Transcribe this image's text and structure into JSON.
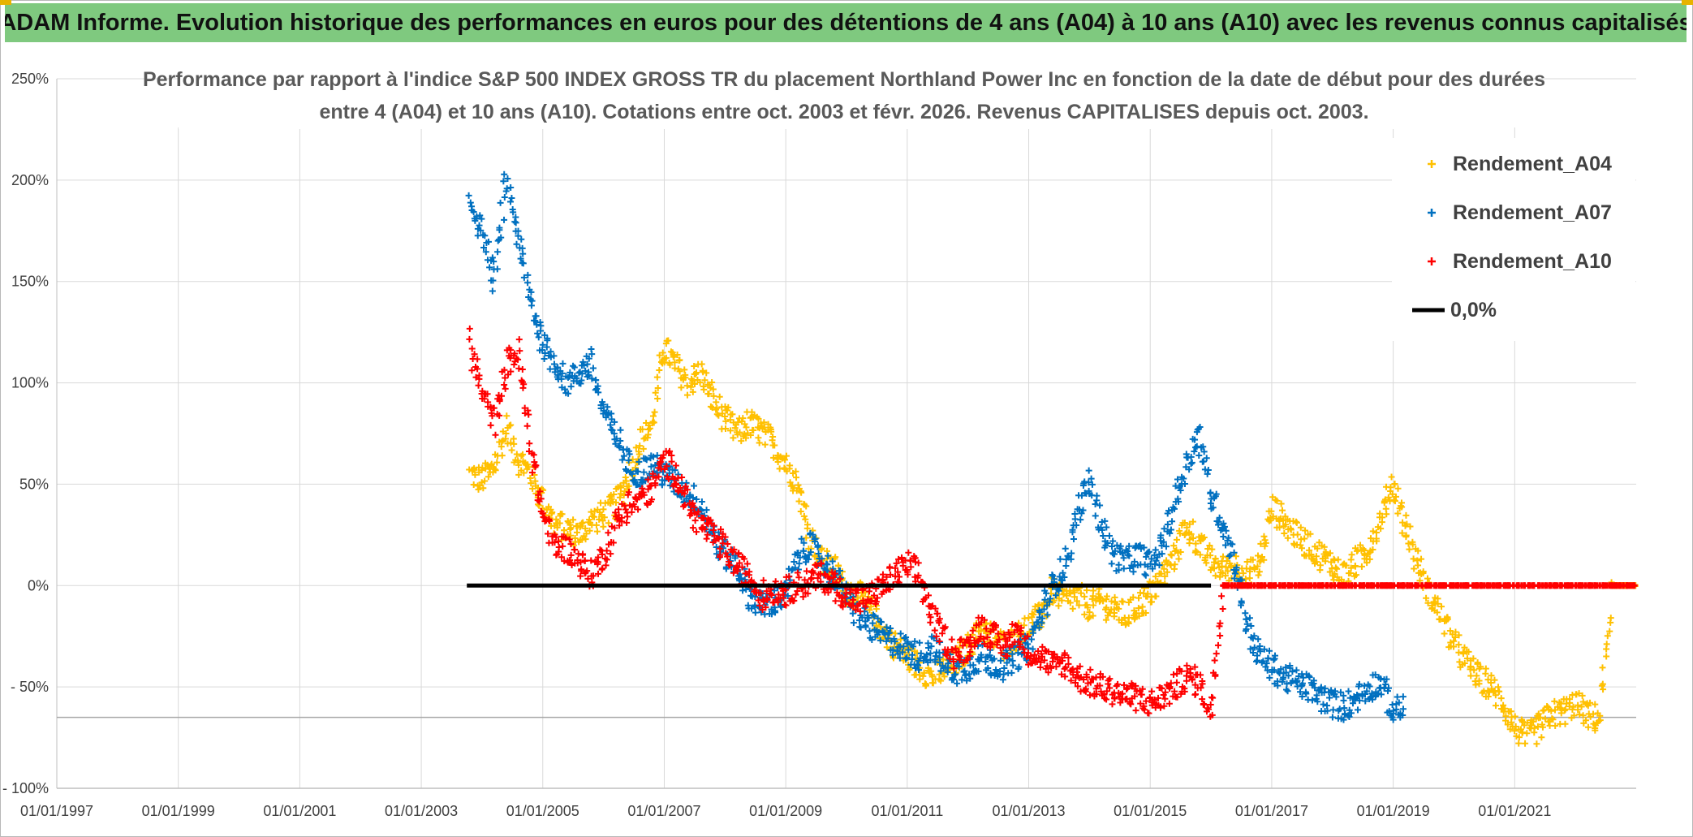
{
  "banner": {
    "title": "ADAM Informe. Evolution historique des performances en euros pour des détentions de 4 ans (A04) à 10 ans (A10) avec les revenus connus capitalisés"
  },
  "chart_data": {
    "type": "scatter",
    "title_line1": "Performance par rapport à l'indice S&P 500 INDEX GROSS TR  du placement Northland Power Inc en fonction de la date de début pour des durées",
    "title_line2": "entre 4 (A04) et 10 ans (A10). Cotations entre oct. 2003 et févr. 2026. Revenus CAPITALISES depuis oct. 2003.",
    "xlabel": "",
    "ylabel": "",
    "xlim": [
      1997.0,
      2023.0
    ],
    "ylim": [
      -100,
      250
    ],
    "x_ticks": [
      {
        "value": 1997.0,
        "label": "01/01/1997"
      },
      {
        "value": 1999.0,
        "label": "01/01/1999"
      },
      {
        "value": 2001.0,
        "label": "01/01/2001"
      },
      {
        "value": 2003.0,
        "label": "01/01/2003"
      },
      {
        "value": 2005.0,
        "label": "01/01/2005"
      },
      {
        "value": 2007.0,
        "label": "01/01/2007"
      },
      {
        "value": 2009.0,
        "label": "01/01/2009"
      },
      {
        "value": 2011.0,
        "label": "01/01/2011"
      },
      {
        "value": 2013.0,
        "label": "01/01/2013"
      },
      {
        "value": 2015.0,
        "label": "01/01/2015"
      },
      {
        "value": 2017.0,
        "label": "01/01/2017"
      },
      {
        "value": 2019.0,
        "label": "01/01/2019"
      },
      {
        "value": 2021.0,
        "label": "01/01/2021"
      }
    ],
    "y_ticks": [
      {
        "value": 250,
        "label": "250%"
      },
      {
        "value": 200,
        "label": "200%"
      },
      {
        "value": 150,
        "label": "150%"
      },
      {
        "value": 100,
        "label": "100%"
      },
      {
        "value": 50,
        "label": "50%"
      },
      {
        "value": 0,
        "label": "0%"
      },
      {
        "value": -50,
        "label": "- 50%"
      },
      {
        "value": -100,
        "label": "- 100%"
      }
    ],
    "reference_line_y": -65,
    "legend_position": "top-right",
    "series": [
      {
        "name": "Rendement_A04",
        "color": "#ffc000",
        "marker": "plus",
        "points": [
          [
            2003.8,
            55
          ],
          [
            2004.0,
            52
          ],
          [
            2004.2,
            58
          ],
          [
            2004.4,
            78
          ],
          [
            2004.6,
            62
          ],
          [
            2004.8,
            55
          ],
          [
            2005.0,
            42
          ],
          [
            2005.2,
            30
          ],
          [
            2005.4,
            28
          ],
          [
            2005.6,
            25
          ],
          [
            2005.8,
            32
          ],
          [
            2006.0,
            35
          ],
          [
            2006.2,
            40
          ],
          [
            2006.4,
            52
          ],
          [
            2006.6,
            70
          ],
          [
            2006.8,
            80
          ],
          [
            2007.0,
            118
          ],
          [
            2007.2,
            108
          ],
          [
            2007.4,
            100
          ],
          [
            2007.6,
            105
          ],
          [
            2007.8,
            92
          ],
          [
            2008.0,
            82
          ],
          [
            2008.2,
            75
          ],
          [
            2008.4,
            80
          ],
          [
            2008.6,
            76
          ],
          [
            2008.8,
            70
          ],
          [
            2009.0,
            60
          ],
          [
            2009.2,
            50
          ],
          [
            2009.4,
            25
          ],
          [
            2009.6,
            12
          ],
          [
            2009.8,
            8
          ],
          [
            2010.0,
            -2
          ],
          [
            2010.2,
            -5
          ],
          [
            2010.4,
            -12
          ],
          [
            2010.6,
            -22
          ],
          [
            2010.8,
            -30
          ],
          [
            2011.0,
            -35
          ],
          [
            2011.2,
            -40
          ],
          [
            2011.4,
            -45
          ],
          [
            2011.6,
            -42
          ],
          [
            2011.8,
            -38
          ],
          [
            2012.0,
            -30
          ],
          [
            2012.2,
            -22
          ],
          [
            2012.4,
            -25
          ],
          [
            2012.6,
            -30
          ],
          [
            2012.8,
            -25
          ],
          [
            2013.0,
            -20
          ],
          [
            2013.2,
            -15
          ],
          [
            2013.4,
            -2
          ],
          [
            2013.6,
            -8
          ],
          [
            2013.8,
            -5
          ],
          [
            2014.0,
            -10
          ],
          [
            2014.2,
            -8
          ],
          [
            2014.4,
            -12
          ],
          [
            2014.6,
            -15
          ],
          [
            2014.8,
            -10
          ],
          [
            2015.0,
            -5
          ],
          [
            2015.2,
            5
          ],
          [
            2015.4,
            15
          ],
          [
            2015.6,
            30
          ],
          [
            2015.8,
            20
          ],
          [
            2016.0,
            12
          ],
          [
            2016.2,
            8
          ],
          [
            2016.4,
            10
          ],
          [
            2016.6,
            5
          ],
          [
            2016.8,
            10
          ],
          [
            2017.0,
            38
          ],
          [
            2017.2,
            32
          ],
          [
            2017.4,
            25
          ],
          [
            2017.6,
            20
          ],
          [
            2017.8,
            15
          ],
          [
            2018.0,
            10
          ],
          [
            2018.2,
            5
          ],
          [
            2018.4,
            12
          ],
          [
            2018.6,
            18
          ],
          [
            2018.8,
            35
          ],
          [
            2019.0,
            50
          ],
          [
            2019.2,
            30
          ],
          [
            2019.4,
            10
          ],
          [
            2019.6,
            -5
          ],
          [
            2019.8,
            -15
          ],
          [
            2020.0,
            -28
          ],
          [
            2020.2,
            -38
          ],
          [
            2020.4,
            -45
          ],
          [
            2020.6,
            -50
          ],
          [
            2020.8,
            -58
          ],
          [
            2021.0,
            -70
          ],
          [
            2021.2,
            -75
          ],
          [
            2021.4,
            -70
          ],
          [
            2021.6,
            -64
          ],
          [
            2021.8,
            -62
          ],
          [
            2022.0,
            -58
          ],
          [
            2022.2,
            -64
          ],
          [
            2022.4,
            -66
          ],
          [
            2022.6,
            0
          ],
          [
            2022.8,
            0
          ],
          [
            2023.0,
            0
          ]
        ]
      },
      {
        "name": "Rendement_A07",
        "color": "#0070c0",
        "marker": "plus",
        "points": [
          [
            2003.8,
            190
          ],
          [
            2004.0,
            175
          ],
          [
            2004.2,
            150
          ],
          [
            2004.4,
            200
          ],
          [
            2004.6,
            170
          ],
          [
            2004.8,
            140
          ],
          [
            2005.0,
            120
          ],
          [
            2005.2,
            110
          ],
          [
            2005.4,
            100
          ],
          [
            2005.6,
            105
          ],
          [
            2005.8,
            110
          ],
          [
            2006.0,
            85
          ],
          [
            2006.2,
            75
          ],
          [
            2006.4,
            60
          ],
          [
            2006.6,
            55
          ],
          [
            2006.8,
            60
          ],
          [
            2007.0,
            55
          ],
          [
            2007.2,
            50
          ],
          [
            2007.4,
            45
          ],
          [
            2007.6,
            40
          ],
          [
            2007.8,
            25
          ],
          [
            2008.0,
            15
          ],
          [
            2008.2,
            10
          ],
          [
            2008.4,
            -5
          ],
          [
            2008.6,
            -10
          ],
          [
            2008.8,
            -8
          ],
          [
            2009.0,
            -5
          ],
          [
            2009.2,
            15
          ],
          [
            2009.4,
            20
          ],
          [
            2009.6,
            12
          ],
          [
            2009.8,
            5
          ],
          [
            2010.0,
            -5
          ],
          [
            2010.2,
            -15
          ],
          [
            2010.4,
            -20
          ],
          [
            2010.6,
            -25
          ],
          [
            2010.8,
            -28
          ],
          [
            2011.0,
            -32
          ],
          [
            2011.2,
            -35
          ],
          [
            2011.4,
            -30
          ],
          [
            2011.6,
            -38
          ],
          [
            2011.8,
            -42
          ],
          [
            2012.0,
            -40
          ],
          [
            2012.2,
            -35
          ],
          [
            2012.4,
            -38
          ],
          [
            2012.6,
            -40
          ],
          [
            2012.8,
            -35
          ],
          [
            2013.0,
            -30
          ],
          [
            2013.2,
            -15
          ],
          [
            2013.4,
            0
          ],
          [
            2013.6,
            10
          ],
          [
            2013.8,
            35
          ],
          [
            2014.0,
            52
          ],
          [
            2014.2,
            30
          ],
          [
            2014.4,
            15
          ],
          [
            2014.6,
            12
          ],
          [
            2014.8,
            15
          ],
          [
            2015.0,
            10
          ],
          [
            2015.2,
            20
          ],
          [
            2015.4,
            40
          ],
          [
            2015.6,
            60
          ],
          [
            2015.8,
            75
          ],
          [
            2016.0,
            45
          ],
          [
            2016.2,
            30
          ],
          [
            2016.4,
            10
          ],
          [
            2016.6,
            -20
          ],
          [
            2016.8,
            -35
          ],
          [
            2017.0,
            -40
          ],
          [
            2017.2,
            -45
          ],
          [
            2017.4,
            -48
          ],
          [
            2017.6,
            -50
          ],
          [
            2017.8,
            -55
          ],
          [
            2018.0,
            -58
          ],
          [
            2018.2,
            -60
          ],
          [
            2018.4,
            -55
          ],
          [
            2018.6,
            -50
          ],
          [
            2018.8,
            -48
          ],
          [
            2019.0,
            -62
          ],
          [
            2019.2,
            -60
          ]
        ]
      },
      {
        "name": "Rendement_A10",
        "color": "#ff0000",
        "marker": "plus",
        "points": [
          [
            2003.8,
            120
          ],
          [
            2004.0,
            95
          ],
          [
            2004.2,
            80
          ],
          [
            2004.4,
            110
          ],
          [
            2004.6,
            115
          ],
          [
            2004.8,
            70
          ],
          [
            2005.0,
            35
          ],
          [
            2005.2,
            20
          ],
          [
            2005.4,
            18
          ],
          [
            2005.6,
            12
          ],
          [
            2005.8,
            5
          ],
          [
            2006.0,
            15
          ],
          [
            2006.2,
            30
          ],
          [
            2006.4,
            40
          ],
          [
            2006.6,
            42
          ],
          [
            2006.8,
            48
          ],
          [
            2007.0,
            62
          ],
          [
            2007.2,
            55
          ],
          [
            2007.4,
            40
          ],
          [
            2007.6,
            30
          ],
          [
            2007.8,
            25
          ],
          [
            2008.0,
            18
          ],
          [
            2008.2,
            10
          ],
          [
            2008.4,
            5
          ],
          [
            2008.6,
            -5
          ],
          [
            2008.8,
            -2
          ],
          [
            2009.0,
            -3
          ],
          [
            2009.2,
            0
          ],
          [
            2009.4,
            2
          ],
          [
            2009.6,
            5
          ],
          [
            2009.8,
            0
          ],
          [
            2010.0,
            -5
          ],
          [
            2010.2,
            -8
          ],
          [
            2010.4,
            -5
          ],
          [
            2010.6,
            0
          ],
          [
            2010.8,
            5
          ],
          [
            2011.0,
            10
          ],
          [
            2011.2,
            5
          ],
          [
            2011.4,
            -15
          ],
          [
            2011.6,
            -25
          ],
          [
            2011.8,
            -35
          ],
          [
            2012.0,
            -30
          ],
          [
            2012.2,
            -20
          ],
          [
            2012.4,
            -25
          ],
          [
            2012.6,
            -30
          ],
          [
            2012.8,
            -22
          ],
          [
            2013.0,
            -32
          ],
          [
            2013.2,
            -35
          ],
          [
            2013.4,
            -40
          ],
          [
            2013.6,
            -38
          ],
          [
            2013.8,
            -45
          ],
          [
            2014.0,
            -48
          ],
          [
            2014.2,
            -50
          ],
          [
            2014.4,
            -52
          ],
          [
            2014.6,
            -55
          ],
          [
            2014.8,
            -55
          ],
          [
            2015.0,
            -58
          ],
          [
            2015.2,
            -55
          ],
          [
            2015.4,
            -50
          ],
          [
            2015.6,
            -45
          ],
          [
            2015.8,
            -48
          ],
          [
            2016.0,
            -62
          ],
          [
            2016.2,
            0
          ],
          [
            2016.6,
            0
          ],
          [
            2017.0,
            0
          ],
          [
            2017.4,
            0
          ],
          [
            2017.8,
            0
          ],
          [
            2018.2,
            0
          ],
          [
            2018.6,
            0
          ],
          [
            2019.0,
            0
          ],
          [
            2019.4,
            0
          ],
          [
            2019.8,
            0
          ],
          [
            2020.2,
            0
          ],
          [
            2020.6,
            0
          ],
          [
            2021.0,
            0
          ],
          [
            2021.4,
            0
          ],
          [
            2021.8,
            0
          ],
          [
            2022.2,
            0
          ],
          [
            2022.6,
            0
          ],
          [
            2023.0,
            0
          ]
        ]
      },
      {
        "name": "0,0%",
        "color": "#000000",
        "marker": "line",
        "points": [
          [
            2003.75,
            0
          ],
          [
            2016.0,
            0
          ]
        ]
      }
    ]
  }
}
